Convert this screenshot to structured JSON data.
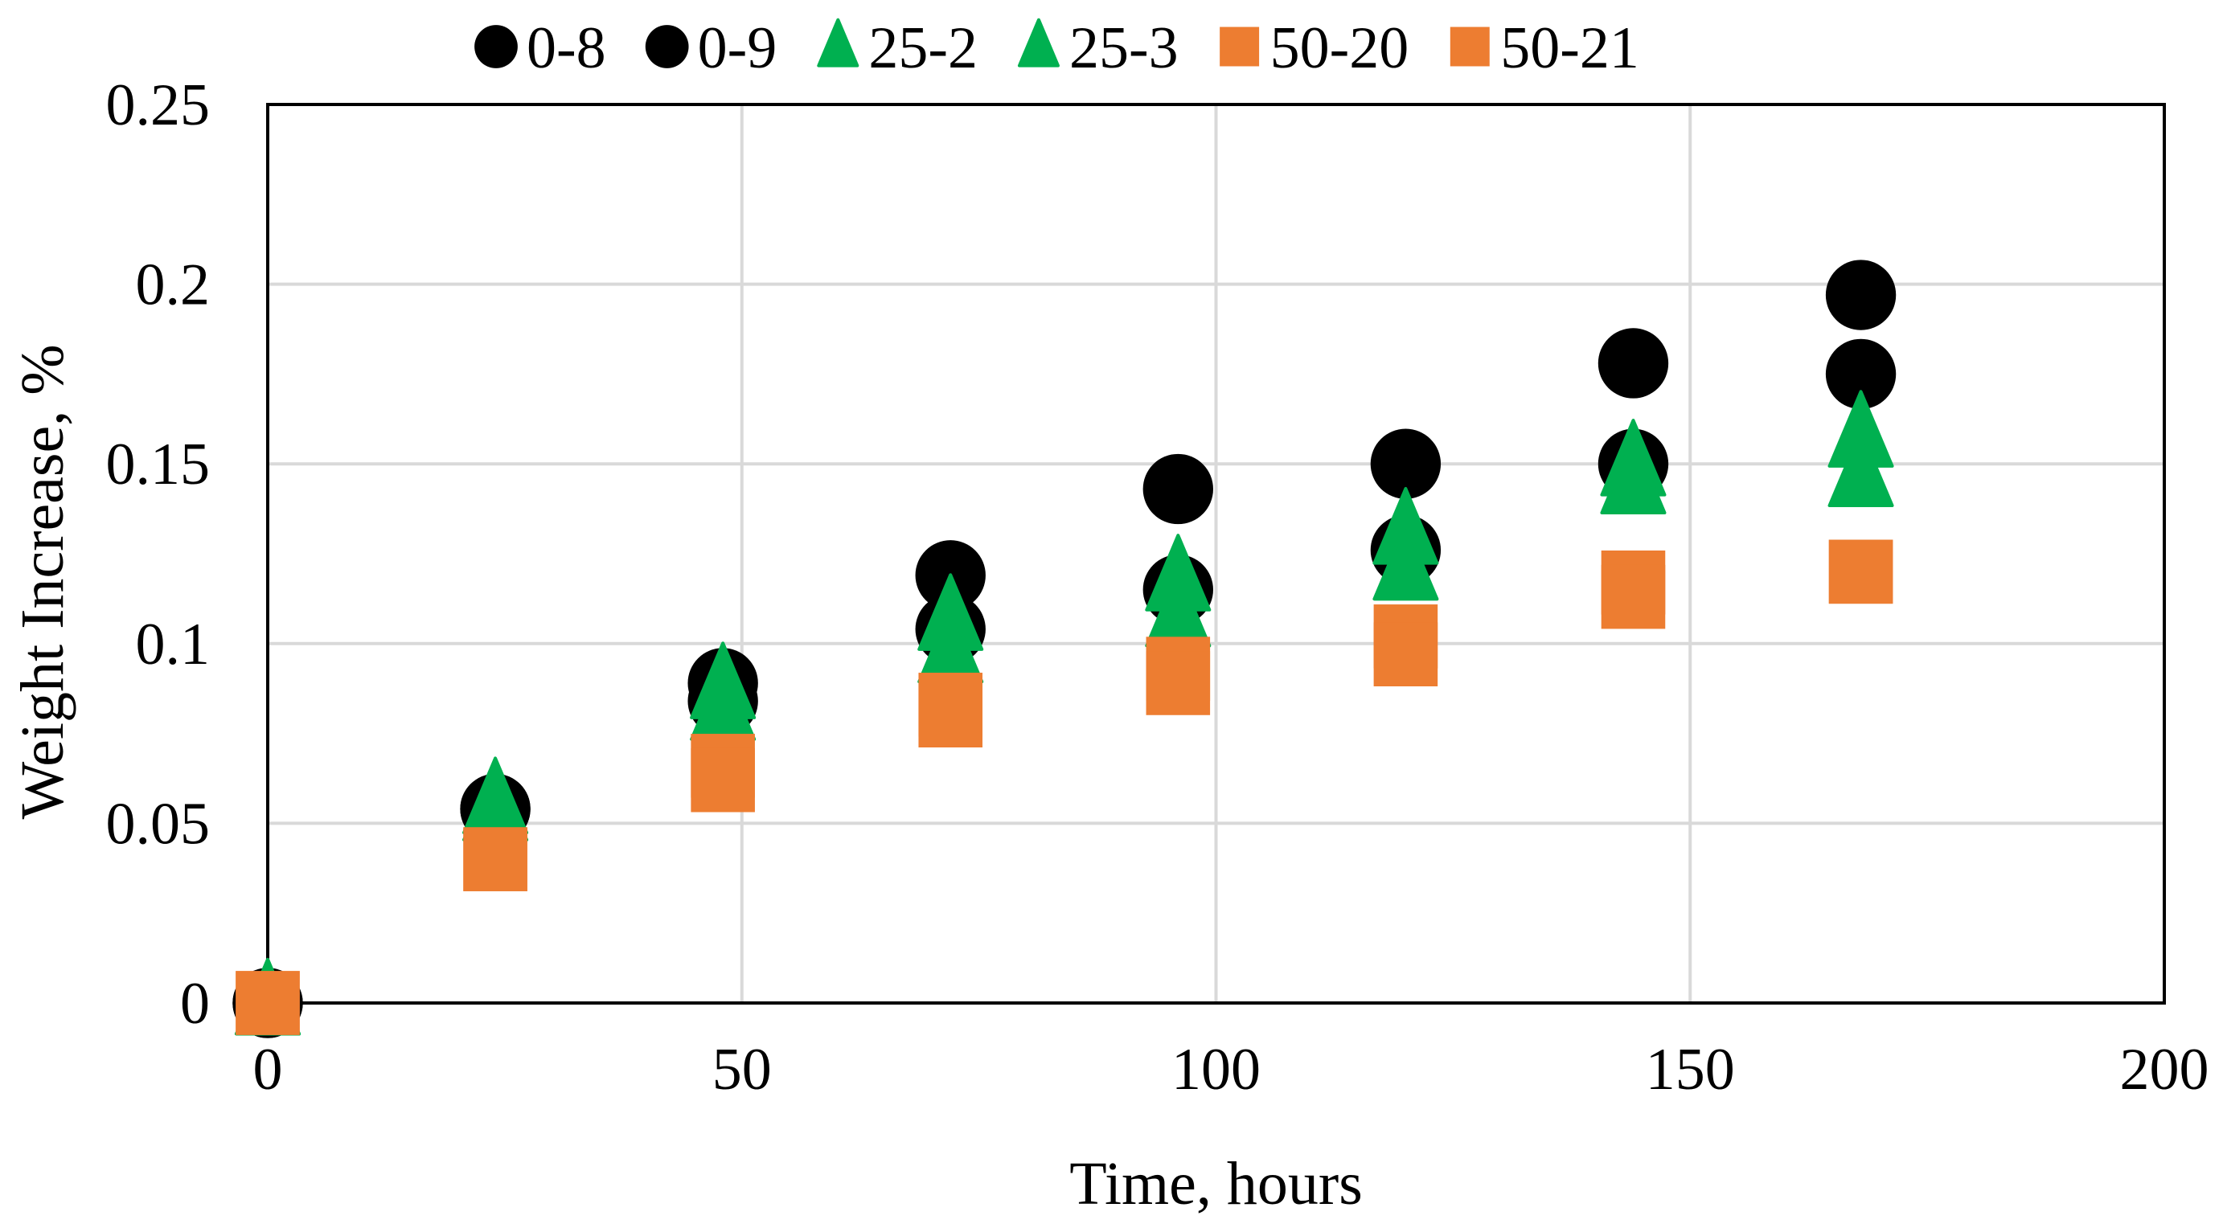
{
  "chart_data": {
    "type": "scatter",
    "title": "",
    "xlabel": "Time, hours",
    "ylabel": "Weight Increase, %",
    "xlim": [
      0,
      200
    ],
    "ylim": [
      0,
      0.25
    ],
    "x_ticks": [
      0,
      50,
      100,
      150,
      200
    ],
    "x_tick_labels": [
      "0",
      "50",
      "100",
      "150",
      "200"
    ],
    "y_ticks": [
      0,
      0.05,
      0.1,
      0.15,
      0.2,
      0.25
    ],
    "y_tick_labels": [
      "0",
      "0.05",
      "0.1",
      "0.15",
      "0.2",
      "0.25"
    ],
    "grid": true,
    "legend_position": "top",
    "series": [
      {
        "name": "0-8",
        "marker": "circle",
        "color": "#000000",
        "x": [
          0,
          24,
          48,
          72,
          96,
          120,
          144,
          168
        ],
        "y": [
          0,
          0.054,
          0.089,
          0.119,
          0.143,
          0.15,
          0.178,
          0.197
        ]
      },
      {
        "name": "0-9",
        "marker": "circle",
        "color": "#000000",
        "x": [
          0,
          24,
          48,
          72,
          96,
          120,
          144,
          168
        ],
        "y": [
          0,
          0.054,
          0.084,
          0.104,
          0.115,
          0.126,
          0.15,
          0.175
        ]
      },
      {
        "name": "25-2",
        "marker": "triangle",
        "color": "#00b050",
        "x": [
          0,
          24,
          48,
          72,
          96,
          120,
          144,
          168
        ],
        "y": [
          0,
          0.056,
          0.088,
          0.107,
          0.118,
          0.131,
          0.15,
          0.158
        ]
      },
      {
        "name": "25-3",
        "marker": "triangle",
        "color": "#00b050",
        "x": [
          0,
          24,
          48,
          72,
          96,
          120,
          144,
          168
        ],
        "y": [
          0,
          0.054,
          0.082,
          0.098,
          0.108,
          0.121,
          0.145,
          0.147
        ]
      },
      {
        "name": "50-20",
        "marker": "square",
        "color": "#ed7d31",
        "x": [
          0,
          24,
          48,
          72,
          96,
          120,
          144,
          168
        ],
        "y": [
          0,
          0.04,
          0.066,
          0.083,
          0.093,
          0.102,
          0.117,
          0.12
        ]
      },
      {
        "name": "50-21",
        "marker": "square",
        "color": "#ed7d31",
        "x": [
          0,
          24,
          48,
          72,
          96,
          120,
          144,
          168
        ],
        "y": [
          0,
          0.04,
          0.062,
          0.08,
          0.089,
          0.097,
          0.113,
          0.12
        ]
      }
    ]
  }
}
